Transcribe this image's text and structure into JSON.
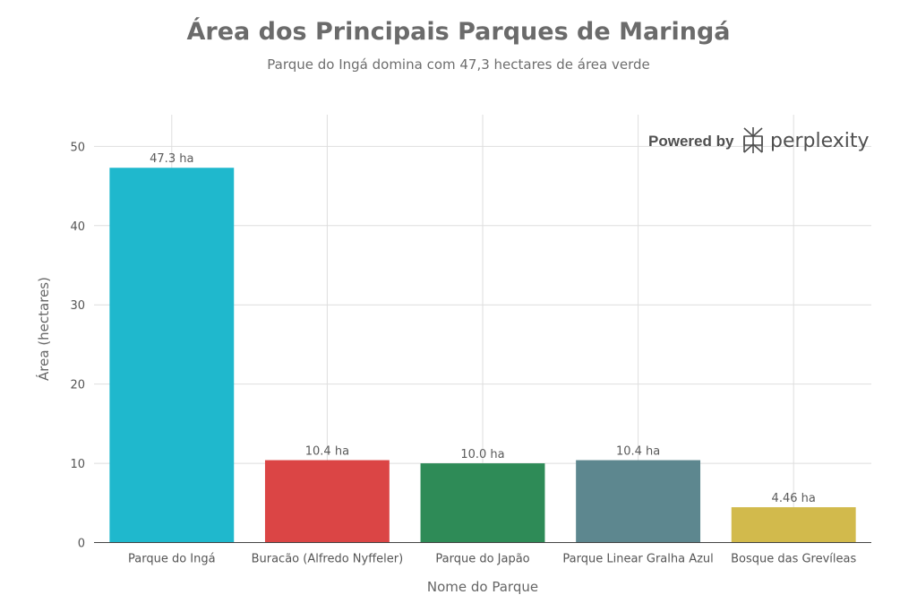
{
  "chart_data": {
    "type": "bar",
    "title": "Área dos Principais Parques de Maringá",
    "subtitle": "Parque do Ingá domina com 47,3 hectares de área verde",
    "xlabel": "Nome do Parque",
    "ylabel": "Área (hectares)",
    "categories": [
      "Parque do Ingá",
      "Buracão (Alfredo Nyffeler)",
      "Parque do Japão",
      "Parque Linear Gralha Azul",
      "Bosque das Grevíleas"
    ],
    "values": [
      47.3,
      10.4,
      10.0,
      10.4,
      4.46
    ],
    "data_labels": [
      "47.3 ha",
      "10.4 ha",
      "10.0 ha",
      "10.4 ha",
      "4.46 ha"
    ],
    "colors": [
      "#1fb8cd",
      "#db4545",
      "#2e8b57",
      "#5d878f",
      "#d2ba4c"
    ],
    "ylim": [
      0,
      54
    ],
    "yticks": [
      0,
      10,
      20,
      30,
      40,
      50
    ],
    "grid": true,
    "legend": "none"
  },
  "branding": {
    "powered_by": "Powered by",
    "name": "perplexity",
    "icon": "perplexity-logo-icon"
  }
}
